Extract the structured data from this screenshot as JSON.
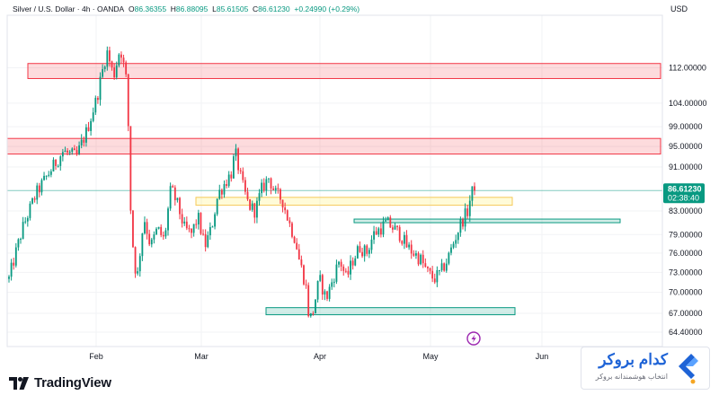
{
  "header": {
    "symbol": "Silver / U.S. Dollar · 4h · OANDA",
    "open_label": "O",
    "open": "86.36355",
    "high_label": "H",
    "high": "86.88095",
    "low_label": "L",
    "low": "85.61505",
    "close_label": "C",
    "close": "86.61230",
    "change": "+0.24990 (+0.29%)",
    "currency": "USD"
  },
  "price_label": {
    "price": "86.61230",
    "countdown": "02:38:40"
  },
  "brand": {
    "name": "TradingView"
  },
  "watermark": {
    "title": "کدام بروکر",
    "subtitle": "انتخاب هوشمندانه بروکر"
  },
  "colors": {
    "up": "#089981",
    "down": "#f23645",
    "accent": "#2962ff"
  },
  "chart_data": {
    "type": "candlestick",
    "symbol": "XAGUSD",
    "interval": "4h",
    "y_scale": "log",
    "ylim": [
      62.5,
      125
    ],
    "y_ticks": [
      "112.00000",
      "104.00000",
      "99.00000",
      "95.00000",
      "91.00000",
      "86.61230",
      "83.00000",
      "79.00000",
      "76.00000",
      "73.00000",
      "70.00000",
      "67.00000",
      "64.40000"
    ],
    "tick_values": [
      112,
      104,
      99,
      95,
      91,
      83,
      79,
      76,
      73,
      70,
      67,
      64.4
    ],
    "x_labels": [
      "Feb",
      "Mar",
      "Apr",
      "May",
      "Jun"
    ],
    "last_price": 86.6123,
    "price_path": [
      {
        "t": 0,
        "p": 72
      },
      {
        "t": 4,
        "p": 80
      },
      {
        "t": 8,
        "p": 86
      },
      {
        "t": 12,
        "p": 90
      },
      {
        "t": 16,
        "p": 94
      },
      {
        "t": 20,
        "p": 93
      },
      {
        "t": 23,
        "p": 98
      },
      {
        "t": 26,
        "p": 105
      },
      {
        "t": 29,
        "p": 116
      },
      {
        "t": 31,
        "p": 110
      },
      {
        "t": 33,
        "p": 117
      },
      {
        "t": 35,
        "p": 108
      },
      {
        "t": 36,
        "p": 84
      },
      {
        "t": 37,
        "p": 75
      },
      {
        "t": 38,
        "p": 72
      },
      {
        "t": 40,
        "p": 82
      },
      {
        "t": 42,
        "p": 77
      },
      {
        "t": 44,
        "p": 80
      },
      {
        "t": 46,
        "p": 78
      },
      {
        "t": 48,
        "p": 87
      },
      {
        "t": 50,
        "p": 84
      },
      {
        "t": 52,
        "p": 80
      },
      {
        "t": 54,
        "p": 79
      },
      {
        "t": 56,
        "p": 82
      },
      {
        "t": 58,
        "p": 77
      },
      {
        "t": 60,
        "p": 80
      },
      {
        "t": 62,
        "p": 86
      },
      {
        "t": 64,
        "p": 88
      },
      {
        "t": 66,
        "p": 90
      },
      {
        "t": 67,
        "p": 94
      },
      {
        "t": 69,
        "p": 88
      },
      {
        "t": 71,
        "p": 84
      },
      {
        "t": 73,
        "p": 83
      },
      {
        "t": 75,
        "p": 87
      },
      {
        "t": 77,
        "p": 89
      },
      {
        "t": 79,
        "p": 86
      },
      {
        "t": 81,
        "p": 85
      },
      {
        "t": 83,
        "p": 81
      },
      {
        "t": 85,
        "p": 78
      },
      {
        "t": 86,
        "p": 75
      },
      {
        "t": 88,
        "p": 71
      },
      {
        "t": 89,
        "p": 66
      },
      {
        "t": 90,
        "p": 67
      },
      {
        "t": 92,
        "p": 72
      },
      {
        "t": 94,
        "p": 69
      },
      {
        "t": 96,
        "p": 72
      },
      {
        "t": 98,
        "p": 75
      },
      {
        "t": 100,
        "p": 72
      },
      {
        "t": 102,
        "p": 75
      },
      {
        "t": 104,
        "p": 77
      },
      {
        "t": 106,
        "p": 76
      },
      {
        "t": 108,
        "p": 79
      },
      {
        "t": 110,
        "p": 80
      },
      {
        "t": 112,
        "p": 81
      },
      {
        "t": 114,
        "p": 80
      },
      {
        "t": 116,
        "p": 79
      },
      {
        "t": 118,
        "p": 77
      },
      {
        "t": 120,
        "p": 76
      },
      {
        "t": 122,
        "p": 75
      },
      {
        "t": 124,
        "p": 73
      },
      {
        "t": 126,
        "p": 72
      },
      {
        "t": 128,
        "p": 73
      },
      {
        "t": 130,
        "p": 75
      },
      {
        "t": 132,
        "p": 78
      },
      {
        "t": 134,
        "p": 81
      },
      {
        "t": 136,
        "p": 83
      },
      {
        "t": 137,
        "p": 86
      },
      {
        "t": 138,
        "p": 87
      }
    ],
    "zones": [
      {
        "type": "resistance",
        "from": 109.5,
        "to": 113
      },
      {
        "type": "resistance",
        "from": 93.5,
        "to": 96.6
      },
      {
        "type": "supply",
        "from": 84,
        "to": 85.4
      },
      {
        "type": "support",
        "from": 81,
        "to": 81.6
      },
      {
        "type": "support",
        "from": 66.8,
        "to": 67.8
      }
    ]
  }
}
